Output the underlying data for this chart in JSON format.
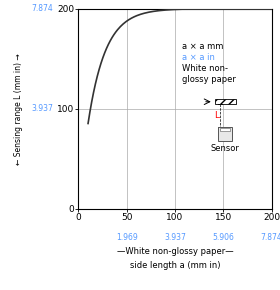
{
  "xlim": [
    0,
    200
  ],
  "ylim": [
    0,
    200
  ],
  "xticks_mm": [
    0,
    50,
    100,
    150,
    200
  ],
  "yticks_mm": [
    0,
    100,
    200
  ],
  "xticks_in": [
    1.969,
    3.937,
    5.906,
    7.874
  ],
  "xpos_in": [
    50,
    100,
    150,
    200
  ],
  "yticks_in": [
    "3.937",
    "7.874"
  ],
  "ypos_in": [
    100,
    200
  ],
  "curve_color": "#333333",
  "grid_color": "#aaaaaa",
  "blue_color": "#5599ff",
  "annotation_mm": "a × a mm",
  "annotation_in": "a × a in",
  "annotation_paper1": "White non-",
  "annotation_paper2": "glossy paper",
  "annotation_sensor": "Sensor",
  "xlabel_line1": "—White non-glossy paper—",
  "xlabel_line2": "side length a (mm in)",
  "ylabel": "Sensing range L (mm in)"
}
